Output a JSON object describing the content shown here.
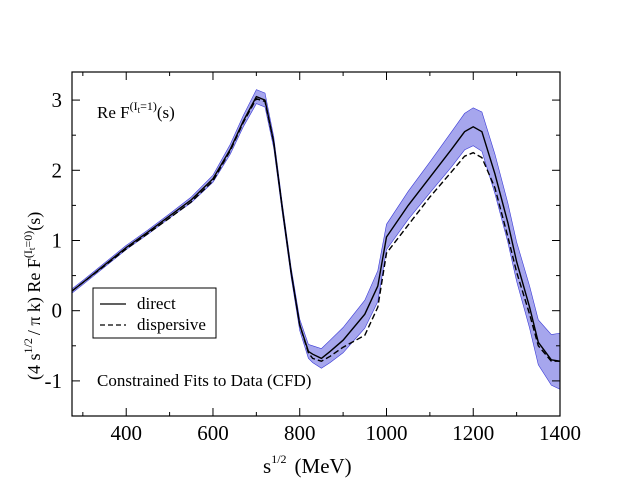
{
  "chart_data": {
    "type": "line",
    "title": "",
    "xlabel": {
      "base": "s",
      "sup": "1/2",
      "rest": "(MeV)"
    },
    "ylabel": {
      "part1": "(4 s",
      "part1_sup": "1/2",
      "part2": "/ π k)  Re F",
      "part2_sup_pre": "(I",
      "part2_sup_sub": "t",
      "part2_sup_post": "=0)",
      "part3": "(s)"
    },
    "xlim": [
      275,
      1400
    ],
    "ylim": [
      -1.5,
      3.4
    ],
    "xticks": [
      400,
      600,
      800,
      1000,
      1200,
      1400
    ],
    "yticks": [
      -1,
      0,
      1,
      2,
      3
    ],
    "xtick_labels": [
      "400",
      "600",
      "800",
      "1000",
      "1200",
      "1400"
    ],
    "ytick_labels": [
      "-1",
      "0",
      "1",
      "2",
      "3"
    ],
    "grid": false,
    "legend_position": "bottom-left",
    "annotations": {
      "top_label": {
        "pre": "Re F",
        "sup_pre": "(I",
        "sup_sub": "t",
        "sup_post": "=1)",
        "post": "(s)"
      },
      "bottom_label": "Constrained Fits to Data (CFD)"
    },
    "colors": {
      "band": "#3a3ad6",
      "line": "#000000"
    },
    "series": [
      {
        "name": "direct",
        "style": "solid",
        "x": [
          275,
          300,
          350,
          400,
          450,
          500,
          550,
          600,
          640,
          670,
          700,
          720,
          740,
          760,
          780,
          800,
          820,
          830,
          850,
          870,
          900,
          950,
          980,
          1000,
          1050,
          1100,
          1150,
          1180,
          1200,
          1220,
          1250,
          1280,
          1300,
          1330,
          1350,
          1380,
          1400
        ],
        "y": [
          0.28,
          0.4,
          0.65,
          0.9,
          1.12,
          1.35,
          1.58,
          1.88,
          2.3,
          2.7,
          3.05,
          3.0,
          2.4,
          1.45,
          0.55,
          -0.2,
          -0.58,
          -0.62,
          -0.68,
          -0.58,
          -0.42,
          -0.05,
          0.35,
          1.05,
          1.5,
          1.9,
          2.3,
          2.55,
          2.62,
          2.55,
          1.95,
          1.25,
          0.7,
          0.05,
          -0.45,
          -0.7,
          -0.72
        ],
        "band_half_width": [
          0.03,
          0.03,
          0.03,
          0.03,
          0.03,
          0.03,
          0.04,
          0.05,
          0.07,
          0.08,
          0.1,
          0.1,
          0.08,
          0.07,
          0.07,
          0.08,
          0.1,
          0.12,
          0.14,
          0.16,
          0.18,
          0.2,
          0.22,
          0.18,
          0.2,
          0.22,
          0.25,
          0.26,
          0.27,
          0.28,
          0.28,
          0.28,
          0.28,
          0.3,
          0.32,
          0.36,
          0.4
        ]
      },
      {
        "name": "dispersive",
        "style": "dashed",
        "x": [
          275,
          300,
          350,
          400,
          450,
          500,
          550,
          600,
          640,
          670,
          700,
          720,
          740,
          760,
          780,
          800,
          820,
          830,
          850,
          870,
          900,
          950,
          980,
          1000,
          1050,
          1100,
          1150,
          1180,
          1200,
          1220,
          1250,
          1280,
          1300,
          1330,
          1350,
          1380,
          1400
        ],
        "y": [
          0.28,
          0.4,
          0.64,
          0.88,
          1.1,
          1.32,
          1.55,
          1.85,
          2.28,
          2.68,
          3.02,
          2.98,
          2.4,
          1.45,
          0.55,
          -0.2,
          -0.6,
          -0.68,
          -0.72,
          -0.65,
          -0.52,
          -0.35,
          0.05,
          0.82,
          1.22,
          1.62,
          1.98,
          2.2,
          2.25,
          2.18,
          1.75,
          1.05,
          0.55,
          -0.05,
          -0.5,
          -0.72,
          -0.72
        ]
      }
    ]
  }
}
